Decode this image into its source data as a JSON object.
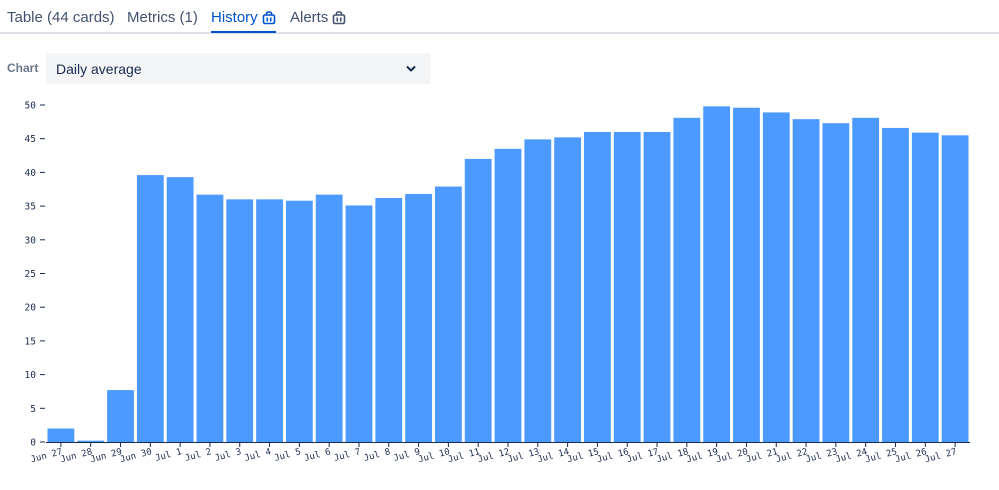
{
  "tabs": [
    {
      "label": "Table (44 cards)",
      "active": false,
      "locked": false
    },
    {
      "label": "Metrics (1)",
      "active": false,
      "locked": false
    },
    {
      "label": "History",
      "active": true,
      "locked": true
    },
    {
      "label": "Alerts",
      "active": false,
      "locked": true
    }
  ],
  "chart_select": {
    "label": "Chart",
    "value": "Daily average"
  },
  "colors": {
    "bar": "#4c9aff",
    "active_tab": "#0052cc"
  },
  "chart_data": {
    "type": "bar",
    "categories": [
      "Jun 27",
      "Jun 28",
      "Jun 29",
      "Jun 30",
      "Jul 1",
      "Jul 2",
      "Jul 3",
      "Jul 4",
      "Jul 5",
      "Jul 6",
      "Jul 7",
      "Jul 8",
      "Jul 9",
      "Jul 10",
      "Jul 11",
      "Jul 12",
      "Jul 13",
      "Jul 14",
      "Jul 15",
      "Jul 16",
      "Jul 17",
      "Jul 18",
      "Jul 19",
      "Jul 20",
      "Jul 21",
      "Jul 22",
      "Jul 23",
      "Jul 24",
      "Jul 25",
      "Jul 26",
      "Jul 27"
    ],
    "values": [
      2.0,
      0.2,
      7.7,
      39.6,
      39.3,
      36.7,
      36.0,
      36.0,
      35.8,
      36.7,
      35.1,
      36.2,
      36.8,
      37.9,
      42.0,
      43.5,
      44.9,
      45.2,
      46.0,
      46.0,
      46.0,
      48.1,
      49.8,
      49.6,
      48.9,
      47.9,
      47.3,
      48.1,
      46.6,
      45.9,
      45.5
    ],
    "yticks": [
      0,
      5,
      10,
      15,
      20,
      25,
      30,
      35,
      40,
      45,
      50
    ],
    "ylim": [
      0,
      50
    ],
    "grid": false
  }
}
